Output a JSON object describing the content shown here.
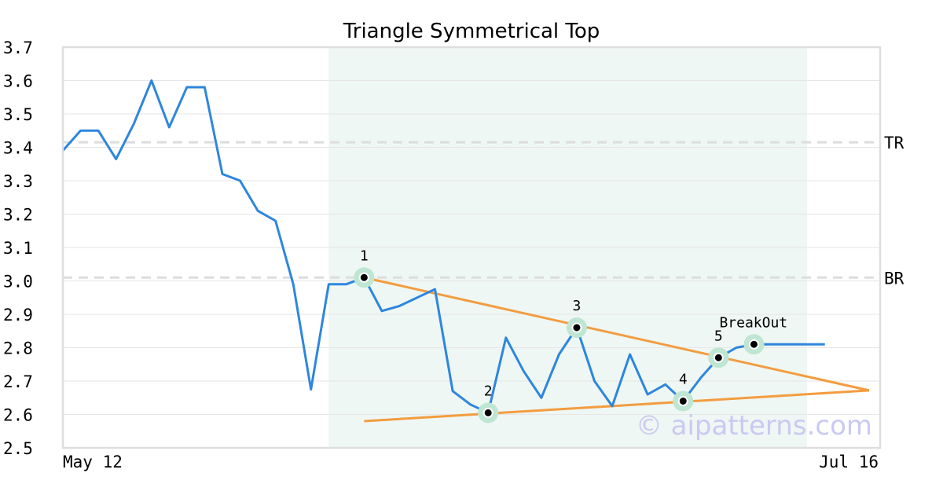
{
  "chart_data": {
    "type": "line",
    "title": "Triangle Symmetrical Top",
    "xlabel": "",
    "ylabel": "",
    "x_tick_labels": [
      "May 12",
      "Jul 16"
    ],
    "ylim": [
      2.5,
      3.7
    ],
    "y_ticks": [
      2.5,
      2.6,
      2.7,
      2.8,
      2.9,
      3.0,
      3.1,
      3.2,
      3.3,
      3.4,
      3.5,
      3.6,
      3.7
    ],
    "grid": true,
    "series": [
      {
        "color": "#2e86de",
        "values": [
          3.39,
          3.45,
          3.45,
          3.365,
          3.47,
          3.6,
          3.46,
          3.58,
          3.58,
          3.32,
          3.3,
          3.21,
          3.18,
          2.99,
          2.675,
          2.99,
          2.99,
          3.01,
          2.91,
          2.925,
          2.95,
          2.975,
          2.67,
          2.63,
          2.605,
          2.83,
          2.73,
          2.65,
          2.78,
          2.86,
          2.7,
          2.625,
          2.78,
          2.66,
          2.69,
          2.64,
          2.71,
          2.77,
          2.8,
          2.81,
          2.81,
          2.81,
          2.81,
          2.81
        ]
      }
    ],
    "pattern_zone": {
      "from_index": 15,
      "to_index": 42,
      "color": "#eef7f3"
    },
    "trendlines": [
      {
        "color": "#f39c40",
        "from": [
          17,
          3.01
        ],
        "to": [
          45.5,
          2.672
        ]
      },
      {
        "color": "#f39c40",
        "from": [
          17,
          2.58
        ],
        "to": [
          45.5,
          2.672
        ]
      }
    ],
    "levels": [
      {
        "label": "TR",
        "value": 3.415
      },
      {
        "label": "BR",
        "value": 3.01
      }
    ],
    "pivots": [
      {
        "label": "1",
        "index": 17,
        "value": 3.01
      },
      {
        "label": "2",
        "index": 24,
        "value": 2.605
      },
      {
        "label": "3",
        "index": 29,
        "value": 2.86
      },
      {
        "label": "4",
        "index": 35,
        "value": 2.64
      },
      {
        "label": "5",
        "index": 37,
        "value": 2.77
      },
      {
        "label": "BreakOut",
        "index": 39,
        "value": 2.81
      }
    ],
    "watermark": "© aipatterns.com"
  }
}
